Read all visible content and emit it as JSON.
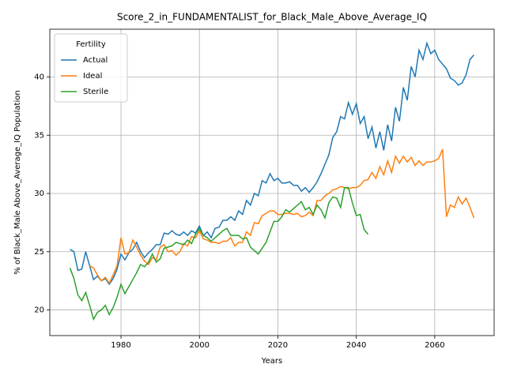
{
  "chart_data": {
    "type": "line",
    "title": "Score_2_in_FUNDAMENTALIST_for_Black_Male_Above_Average_IQ",
    "x_label": "Years",
    "y_label": "% of Black_Male Above_Average_IQ Population",
    "legend_title": "Fertility",
    "legend": "upper left",
    "grid": true,
    "xlim": [
      1961.85,
      2075.15
    ],
    "ylim": [
      17.8,
      44.1
    ],
    "xticks": [
      1980,
      2000,
      2020,
      2040,
      2060
    ],
    "yticks": [
      20,
      25,
      30,
      35,
      40
    ],
    "x": [
      1967,
      1968,
      1969,
      1970,
      1971,
      1972,
      1973,
      1974,
      1975,
      1976,
      1977,
      1978,
      1979,
      1980,
      1981,
      1982,
      1983,
      1984,
      1985,
      1986,
      1987,
      1988,
      1989,
      1990,
      1991,
      1992,
      1993,
      1994,
      1995,
      1996,
      1997,
      1998,
      1999,
      2000,
      2001,
      2002,
      2003,
      2004,
      2005,
      2006,
      2007,
      2008,
      2009,
      2010,
      2011,
      2012,
      2013,
      2014,
      2015,
      2016,
      2017,
      2018,
      2019,
      2020,
      2021,
      2022,
      2023,
      2024,
      2025,
      2026,
      2027,
      2028,
      2029,
      2030,
      2031,
      2032,
      2033,
      2034,
      2035,
      2036,
      2037,
      2038,
      2039,
      2040,
      2041,
      2042,
      2043,
      2044,
      2045,
      2046,
      2047,
      2048,
      2049,
      2050,
      2051,
      2052,
      2053,
      2054,
      2055,
      2056,
      2057,
      2058,
      2059,
      2060,
      2061,
      2062,
      2063,
      2064,
      2065,
      2066,
      2067,
      2068,
      2069,
      2070
    ],
    "series": [
      {
        "name": "Actual",
        "color": "#1f77b4",
        "values": [
          25.2,
          25.0,
          23.4,
          23.5,
          25.0,
          23.8,
          22.6,
          22.9,
          22.5,
          22.7,
          22.2,
          22.7,
          23.5,
          24.8,
          24.3,
          24.9,
          25.2,
          25.8,
          25.0,
          24.5,
          24.9,
          25.2,
          25.6,
          25.6,
          26.6,
          26.5,
          26.8,
          26.5,
          26.4,
          26.7,
          26.4,
          26.8,
          26.6,
          27.2,
          26.4,
          26.7,
          26.2,
          27.0,
          27.1,
          27.7,
          27.7,
          28.0,
          27.7,
          28.5,
          28.2,
          29.4,
          29.0,
          30.0,
          29.8,
          31.1,
          30.9,
          31.7,
          31.1,
          31.3,
          30.9,
          30.9,
          31.0,
          30.7,
          30.7,
          30.2,
          30.5,
          30.1,
          30.5,
          31.0,
          31.7,
          32.5,
          33.3,
          34.8,
          35.3,
          36.6,
          36.4,
          37.8,
          36.8,
          37.7,
          36.0,
          36.6,
          34.7,
          35.7,
          33.9,
          35.3,
          33.7,
          35.9,
          34.5,
          37.4,
          36.2,
          39.1,
          38.0,
          40.9,
          40.0,
          42.3,
          41.5,
          42.9,
          42.0,
          42.3,
          41.5,
          41.1,
          40.7,
          39.9,
          39.7,
          39.3,
          39.5,
          40.2,
          41.5,
          41.9
        ]
      },
      {
        "name": "Ideal",
        "color": "#ff7f0e",
        "values": [
          null,
          null,
          null,
          null,
          null,
          23.8,
          23.6,
          23.0,
          22.5,
          22.8,
          22.3,
          23.0,
          23.8,
          26.2,
          24.8,
          24.9,
          26.0,
          25.4,
          24.7,
          24.2,
          23.9,
          24.5,
          24.3,
          25.4,
          25.6,
          25.0,
          25.1,
          24.7,
          25.0,
          25.7,
          25.5,
          26.3,
          26.2,
          26.8,
          26.1,
          26.0,
          25.8,
          25.8,
          25.7,
          25.9,
          25.9,
          26.2,
          25.5,
          25.8,
          25.8,
          26.7,
          26.4,
          27.5,
          27.4,
          28.1,
          28.3,
          28.5,
          28.5,
          28.2,
          28.2,
          28.3,
          28.3,
          28.2,
          28.3,
          28.0,
          28.1,
          28.4,
          28.1,
          29.4,
          29.4,
          29.8,
          30.0,
          30.3,
          30.4,
          30.6,
          30.5,
          30.4,
          30.5,
          30.5,
          30.7,
          31.1,
          31.2,
          31.8,
          31.3,
          32.3,
          31.6,
          32.8,
          31.8,
          33.2,
          32.6,
          33.2,
          32.7,
          33.1,
          32.4,
          32.8,
          32.4,
          32.7,
          32.7,
          32.8,
          33.0,
          33.8,
          28.0,
          29.0,
          28.8,
          29.7,
          29.1,
          29.6,
          28.8,
          27.9
        ]
      },
      {
        "name": "Sterile",
        "color": "#2ca02c",
        "values": [
          23.6,
          22.7,
          21.3,
          20.8,
          21.5,
          20.4,
          19.2,
          19.8,
          20.0,
          20.4,
          19.6,
          20.2,
          21.1,
          22.2,
          21.4,
          22.0,
          22.6,
          23.2,
          23.9,
          23.7,
          24.1,
          24.8,
          24.1,
          24.4,
          25.3,
          25.4,
          25.5,
          25.8,
          25.7,
          25.6,
          26.0,
          25.7,
          26.5,
          27.0,
          26.4,
          26.2,
          25.9,
          26.2,
          26.5,
          26.8,
          27.0,
          26.4,
          26.4,
          26.4,
          26.1,
          26.2,
          25.4,
          25.1,
          24.8,
          25.3,
          25.8,
          26.7,
          27.6,
          27.6,
          28.0,
          28.6,
          28.4,
          28.7,
          29.0,
          29.3,
          28.6,
          28.8,
          28.2,
          29.0,
          28.6,
          27.9,
          29.2,
          29.7,
          29.6,
          28.8,
          30.5,
          30.5,
          29.2,
          28.1,
          28.2,
          26.9,
          26.5,
          null,
          null,
          null,
          null,
          null,
          null,
          null,
          null,
          null,
          null,
          null,
          null,
          null,
          null,
          null,
          null,
          null,
          null,
          null,
          null,
          null,
          null,
          null,
          null,
          null,
          null,
          null
        ]
      }
    ]
  }
}
